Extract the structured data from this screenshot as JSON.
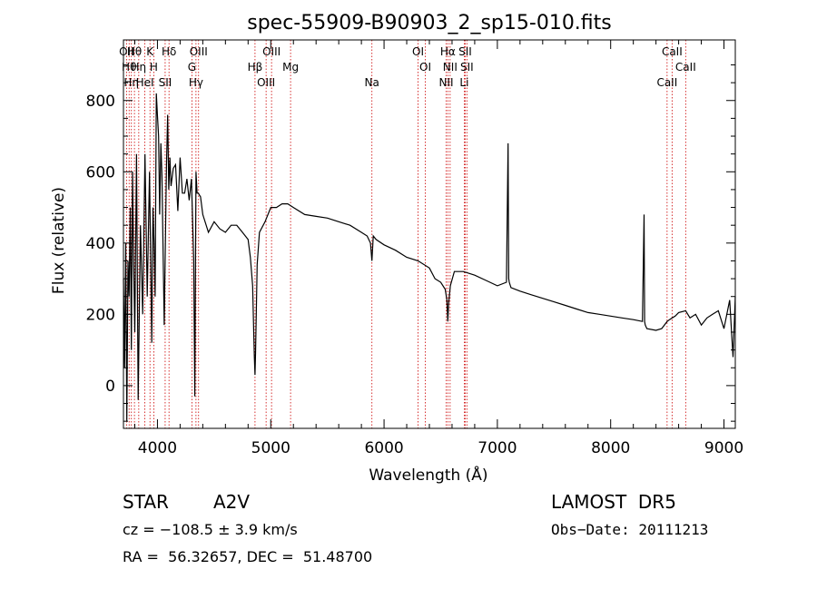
{
  "chart_data": {
    "type": "line",
    "title": "spec-55909-B90903_2_sp15-010.fits",
    "xlabel": "Wavelength (Å)",
    "ylabel": "Flux (relative)",
    "xlim": [
      3700,
      9100
    ],
    "ylim": [
      -120,
      970
    ],
    "xticks": [
      4000,
      5000,
      6000,
      7000,
      8000,
      9000
    ],
    "yticks": [
      0,
      200,
      400,
      600,
      800
    ],
    "grid": false,
    "line_color": "#000000",
    "marker_color": "#cc0000",
    "series": [
      {
        "x": [
          3700,
          3710,
          3720,
          3730,
          3740,
          3750,
          3760,
          3770,
          3780,
          3790,
          3800,
          3815,
          3830,
          3850,
          3870,
          3890,
          3910,
          3930,
          3950,
          3960,
          3970,
          3980,
          3990,
          4000,
          4010,
          4020,
          4030,
          4040,
          4060,
          4080,
          4090,
          4100,
          4110,
          4120,
          4140,
          4160,
          4180,
          4200,
          4220,
          4240,
          4260,
          4280,
          4300,
          4320,
          4330,
          4340,
          4350,
          4360,
          4380,
          4400,
          4450,
          4500,
          4550,
          4600,
          4650,
          4700,
          4750,
          4800,
          4820,
          4840,
          4850,
          4855,
          4861,
          4866,
          4872,
          4880,
          4900,
          4950,
          5000,
          5050,
          5100,
          5150,
          5200,
          5300,
          5400,
          5500,
          5600,
          5700,
          5800,
          5850,
          5880,
          5893,
          5905,
          5930,
          6000,
          6100,
          6200,
          6300,
          6400,
          6450,
          6500,
          6540,
          6555,
          6563,
          6570,
          6585,
          6620,
          6700,
          6800,
          6900,
          7000,
          7080,
          7095,
          7100,
          7105,
          7120,
          7200,
          7300,
          7400,
          7500,
          7600,
          7700,
          7800,
          7900,
          8000,
          8100,
          8200,
          8280,
          8295,
          8300,
          8305,
          8320,
          8400,
          8450,
          8498,
          8520,
          8542,
          8570,
          8600,
          8662,
          8700,
          8750,
          8800,
          8850,
          8900,
          8950,
          9000,
          9050,
          9080,
          9100
        ],
        "y": [
          300,
          50,
          400,
          -100,
          350,
          250,
          500,
          100,
          600,
          350,
          150,
          650,
          -40,
          450,
          200,
          650,
          250,
          600,
          120,
          500,
          400,
          250,
          820,
          760,
          700,
          480,
          680,
          590,
          170,
          620,
          760,
          550,
          640,
          560,
          610,
          620,
          490,
          640,
          540,
          540,
          580,
          520,
          580,
          350,
          -30,
          600,
          540,
          540,
          530,
          480,
          430,
          460,
          440,
          430,
          450,
          450,
          430,
          410,
          360,
          280,
          150,
          80,
          30,
          90,
          200,
          340,
          430,
          460,
          500,
          500,
          510,
          510,
          500,
          480,
          475,
          470,
          460,
          450,
          430,
          420,
          400,
          350,
          420,
          410,
          395,
          380,
          360,
          350,
          330,
          300,
          290,
          270,
          240,
          180,
          230,
          280,
          320,
          320,
          310,
          295,
          280,
          290,
          680,
          300,
          290,
          275,
          265,
          255,
          245,
          235,
          225,
          215,
          205,
          200,
          195,
          190,
          185,
          180,
          480,
          180,
          170,
          160,
          155,
          160,
          180,
          185,
          190,
          195,
          205,
          210,
          190,
          200,
          170,
          190,
          200,
          210,
          160,
          240,
          80,
          250
        ],
        "name": ""
      }
    ],
    "line_markers": [
      {
        "wavelength": 3727,
        "label": "OII"
      },
      {
        "wavelength": 3750,
        "label": "Hθ"
      },
      {
        "wavelength": 3770,
        "label": "Hη"
      },
      {
        "wavelength": 3797,
        "label": "Hθ"
      },
      {
        "wavelength": 3835,
        "label": "Hη"
      },
      {
        "wavelength": 3889,
        "label": "HeI"
      },
      {
        "wavelength": 3934,
        "label": "K"
      },
      {
        "wavelength": 3968,
        "label": "H"
      },
      {
        "wavelength": 4068,
        "label": "SII"
      },
      {
        "wavelength": 4102,
        "label": "Hδ"
      },
      {
        "wavelength": 4304,
        "label": "G"
      },
      {
        "wavelength": 4340,
        "label": "Hγ"
      },
      {
        "wavelength": 4363,
        "label": "OIII"
      },
      {
        "wavelength": 4861,
        "label": "Hβ"
      },
      {
        "wavelength": 4959,
        "label": "OIII"
      },
      {
        "wavelength": 5007,
        "label": "OIII"
      },
      {
        "wavelength": 5175,
        "label": "Mg"
      },
      {
        "wavelength": 5893,
        "label": "Na"
      },
      {
        "wavelength": 6300,
        "label": "OI"
      },
      {
        "wavelength": 6364,
        "label": "OI"
      },
      {
        "wavelength": 6548,
        "label": "NII"
      },
      {
        "wavelength": 6563,
        "label": "Hα"
      },
      {
        "wavelength": 6583,
        "label": "NII"
      },
      {
        "wavelength": 6708,
        "label": "Li"
      },
      {
        "wavelength": 6716,
        "label": "SII"
      },
      {
        "wavelength": 6731,
        "label": "SII"
      },
      {
        "wavelength": 8498,
        "label": "CaII"
      },
      {
        "wavelength": 8542,
        "label": "CaII"
      },
      {
        "wavelength": 8662,
        "label": "CaII"
      }
    ]
  },
  "info": {
    "object_class": "STAR",
    "subclass": "A2V",
    "survey": "LAMOST  DR5",
    "cz": "cz = −108.5 ± 3.9 km/s",
    "obs_date": "Obs−Date: 20111213",
    "radec": "RA =  56.32657, DEC =  51.48700"
  }
}
